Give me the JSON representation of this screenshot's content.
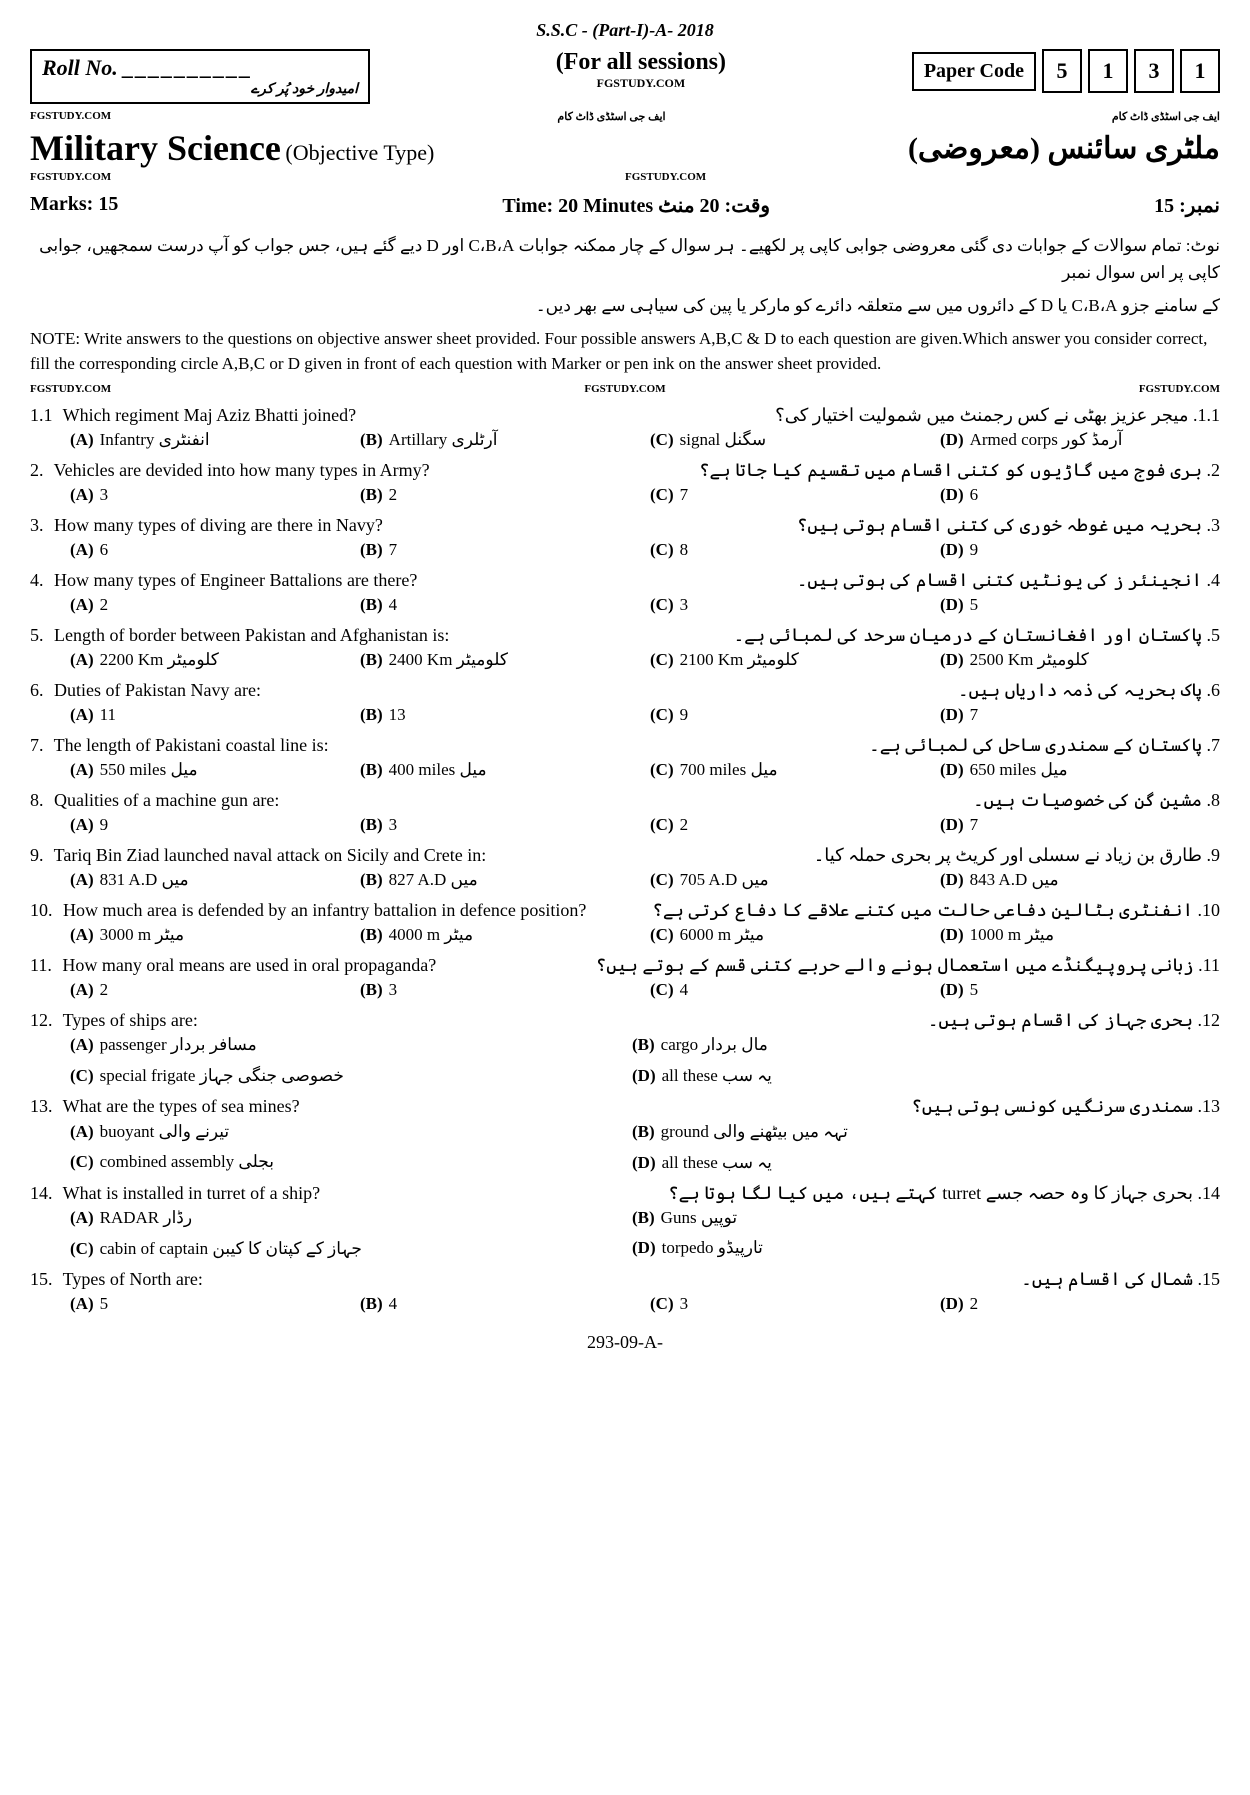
{
  "header": {
    "exam_line": "S.S.C - (Part-I)-A- 2018",
    "roll_label": "Roll No.",
    "roll_urdu": "امیدوار خود پُر کرے",
    "sessions": "(For all sessions)",
    "fg": "FGSTUDY.COM",
    "fg_ur": "ایف جی اسٹڈی ڈاٹ کام",
    "paper_code_label": "Paper Code",
    "paper_code": [
      "5",
      "1",
      "3",
      "1"
    ],
    "title_en": "Military Science",
    "obj_type": "(Objective Type)",
    "title_ur": "ملٹری سائنس (معروضی)",
    "marks_en": "Marks: 15",
    "time_en": "Time: 20 Minutes",
    "time_ur": "وقت: 20 منٹ",
    "marks_ur": "نمبر: 15"
  },
  "notes": {
    "ur1": "نوٹ: تمام سوالات کے جوابات دی گئی معروضی جوابی کاپی پر لکھیے۔ ہر سوال کے چار ممکنہ جوابات C،B،A اور D دیے گئے ہیں، جس جواب کو آپ درست سمجھیں، جوابی کاپی پر اس سوال نمبر",
    "ur2": "کے سامنے جزو C،B،A یا D کے دائروں میں سے متعلقہ دائرے کو مارکر یا پین کی سیاہی سے بھر دیں۔",
    "en": "NOTE: Write answers to the questions on objective answer sheet provided. Four possible answers A,B,C & D to each question are given.Which answer you consider correct, fill the corresponding circle A,B,C or D given in front of each question with Marker or pen ink on the answer sheet provided."
  },
  "questions": [
    {
      "n": "1.1",
      "en": "Which regiment Maj Aziz Bhatti joined?",
      "ur": "1.1.  میجر عزیز بھٹی نے کس رجمنٹ میں شمولیت اختیار کی؟",
      "opts": [
        {
          "l": "(A)",
          "t": "Infantry  انفنٹری"
        },
        {
          "l": "(B)",
          "t": "Artillary  آرٹلری"
        },
        {
          "l": "(C)",
          "t": "signal  سگنل"
        },
        {
          "l": "(D)",
          "t": "Armed corps  آرمڈ کور"
        }
      ]
    },
    {
      "n": "2.",
      "en": "Vehicles are devided into how many types in Army?",
      "ur": "2.  بری فوج میں گاڑیوں کو کتنی اقسام میں تقسیم کیا جاتا ہے؟",
      "opts": [
        {
          "l": "(A)",
          "t": "3"
        },
        {
          "l": "(B)",
          "t": "2"
        },
        {
          "l": "(C)",
          "t": "7"
        },
        {
          "l": "(D)",
          "t": "6"
        }
      ]
    },
    {
      "n": "3.",
      "en": "How many types of diving are there in Navy?",
      "ur": "3.  بحریہ میں غوطہ خوری کی کتنی اقسام ہوتی ہیں؟",
      "opts": [
        {
          "l": "(A)",
          "t": "6"
        },
        {
          "l": "(B)",
          "t": "7"
        },
        {
          "l": "(C)",
          "t": "8"
        },
        {
          "l": "(D)",
          "t": "9"
        }
      ]
    },
    {
      "n": "4.",
      "en": "How many types of Engineer Battalions are there?",
      "ur": "4.  انجینئر ز کی یونٹیں کتنی اقسام کی ہوتی ہیں۔",
      "opts": [
        {
          "l": "(A)",
          "t": "2"
        },
        {
          "l": "(B)",
          "t": "4"
        },
        {
          "l": "(C)",
          "t": "3"
        },
        {
          "l": "(D)",
          "t": "5"
        }
      ]
    },
    {
      "n": "5.",
      "en": "Length of border between Pakistan and Afghanistan is:",
      "ur": "5.  پاکستان اور افغانستان کے درمیان سرحد کی لمبائی ہے۔",
      "opts": [
        {
          "l": "(A)",
          "t": "2200 Km  کلومیٹر"
        },
        {
          "l": "(B)",
          "t": "2400 Km  کلومیٹر"
        },
        {
          "l": "(C)",
          "t": "2100 Km  کلومیٹر"
        },
        {
          "l": "(D)",
          "t": "2500 Km  کلومیٹر"
        }
      ]
    },
    {
      "n": "6.",
      "en": "Duties of Pakistan Navy are:",
      "ur": "6.  پاک بحریہ کی ذمہ داریاں ہیں۔",
      "opts": [
        {
          "l": "(A)",
          "t": "11"
        },
        {
          "l": "(B)",
          "t": "13"
        },
        {
          "l": "(C)",
          "t": "9"
        },
        {
          "l": "(D)",
          "t": "7"
        }
      ]
    },
    {
      "n": "7.",
      "en": "The length of Pakistani coastal line is:",
      "ur": "7.  پاکستان کے سمندری ساحل کی لمبائی ہے۔",
      "opts": [
        {
          "l": "(A)",
          "t": "550 miles  میل"
        },
        {
          "l": "(B)",
          "t": "400 miles  میل"
        },
        {
          "l": "(C)",
          "t": "700 miles  میل"
        },
        {
          "l": "(D)",
          "t": "650 miles  میل"
        }
      ]
    },
    {
      "n": "8.",
      "en": "Qualities of a machine gun are:",
      "ur": "8.  مشین گن کی خصوصیات ہیں۔",
      "opts": [
        {
          "l": "(A)",
          "t": "9"
        },
        {
          "l": "(B)",
          "t": "3"
        },
        {
          "l": "(C)",
          "t": "2"
        },
        {
          "l": "(D)",
          "t": "7"
        }
      ]
    },
    {
      "n": "9.",
      "en": "Tariq Bin Ziad launched naval attack on Sicily and Crete in:",
      "ur": "9.  طارق بن زیاد نے سسلی اور کریٹ پر بحری حملہ کیا۔",
      "opts": [
        {
          "l": "(A)",
          "t": "831 A.D میں"
        },
        {
          "l": "(B)",
          "t": "827 A.D میں"
        },
        {
          "l": "(C)",
          "t": "705 A.D میں"
        },
        {
          "l": "(D)",
          "t": "843 A.D میں"
        }
      ]
    },
    {
      "n": "10.",
      "en": "How much area is defended by an infantry battalion in defence position?",
      "ur": "10.  انفنٹری بٹالین دفاعی حالت میں کتنے علاقے کا دفاع کرتی ہے؟",
      "opts": [
        {
          "l": "(A)",
          "t": "3000 m  میٹر"
        },
        {
          "l": "(B)",
          "t": "4000 m  میٹر"
        },
        {
          "l": "(C)",
          "t": "6000 m  میٹر"
        },
        {
          "l": "(D)",
          "t": "1000 m  میٹر"
        }
      ]
    },
    {
      "n": "11.",
      "en": "How many oral means are used in oral propaganda?",
      "ur": "11.  زبانی پروپیگنڈے میں استعمال ہونے والے حربے کتنی قسم کے ہوتے ہیں؟",
      "opts": [
        {
          "l": "(A)",
          "t": "2"
        },
        {
          "l": "(B)",
          "t": "3"
        },
        {
          "l": "(C)",
          "t": "4"
        },
        {
          "l": "(D)",
          "t": "5"
        }
      ]
    },
    {
      "n": "12.",
      "en": "Types of ships are:",
      "ur": "12.  بحری جہاز کی اقسام ہوتی ہیں۔",
      "two": true,
      "opts": [
        {
          "l": "(A)",
          "t": "passenger  مسافر بردار"
        },
        {
          "l": "(B)",
          "t": "cargo  مال بردار"
        },
        {
          "l": "(C)",
          "t": "special frigate  خصوصی جنگی جہاز"
        },
        {
          "l": "(D)",
          "t": "all these  یہ سب"
        }
      ]
    },
    {
      "n": "13.",
      "en": "What are the types of sea mines?",
      "ur": "13.  سمندری سرنگیں کونسی ہوتی ہیں؟",
      "two": true,
      "opts": [
        {
          "l": "(A)",
          "t": "buoyant  تیرنے والی"
        },
        {
          "l": "(B)",
          "t": "ground  تہہ میں بیٹھنے والی"
        },
        {
          "l": "(C)",
          "t": "combined assembly  بجلی"
        },
        {
          "l": "(D)",
          "t": "all these  یہ سب"
        }
      ]
    },
    {
      "n": "14.",
      "en": "What is installed in turret of a ship?",
      "ur": "14.  بحری جہاز کا وہ حصہ جسے turret کہتے ہیں، میں کیا لگا ہوتا ہے؟",
      "two": true,
      "opts": [
        {
          "l": "(A)",
          "t": "RADAR  رڈار"
        },
        {
          "l": "(B)",
          "t": "Guns  توپیں"
        },
        {
          "l": "(C)",
          "t": "cabin of captain  جہاز کے کپتان کا کیبن"
        },
        {
          "l": "(D)",
          "t": "torpedo  تارپیڈو"
        }
      ]
    },
    {
      "n": "15.",
      "en": "Types of North are:",
      "ur": "15.  شمال کی اقسام ہیں۔",
      "opts": [
        {
          "l": "(A)",
          "t": "5"
        },
        {
          "l": "(B)",
          "t": "4"
        },
        {
          "l": "(C)",
          "t": "3"
        },
        {
          "l": "(D)",
          "t": "2"
        }
      ]
    }
  ],
  "footer": "293-09-A-"
}
